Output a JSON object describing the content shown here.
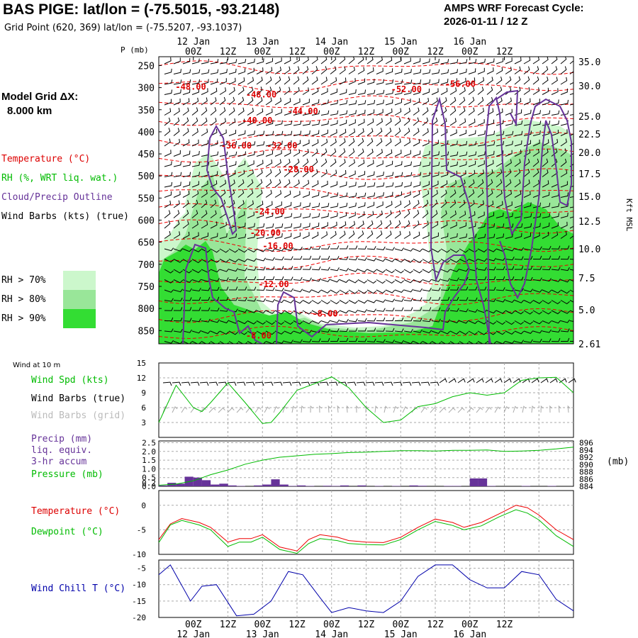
{
  "header": {
    "title": "BAS PIGE:  lat/lon = (-75.5015, -93.2148)",
    "subtitle": "Grid Point (620, 369) lat/lon = (-75.5207, -93.1037)",
    "cycle_label": "AMPS WRF Forecast Cycle:",
    "cycle_value": "2026-01-11 / 12  Z",
    "grid_label": "Model Grid ΔX:",
    "grid_value": "8.000 km"
  },
  "legend_top": {
    "temperature": "Temperature (°C)",
    "rh": "RH (%, WRT liq. wat.)",
    "cloud": "Cloud/Precip Outline",
    "wind": "Wind Barbs (kts) (true)",
    "rh_levels": [
      {
        "label": "RH > 70%",
        "color": "#ccf7cc"
      },
      {
        "label": "RH > 80%",
        "color": "#99e699"
      },
      {
        "label": "RH > 90%",
        "color": "#33dd33"
      }
    ]
  },
  "legend_wind": {
    "note": "Wind at 10 m",
    "speed": "Wind Spd (kts)",
    "barbs_true": "Wind Barbs (true)",
    "barbs_grid": "Wind Barbs (grid)"
  },
  "legend_precip": {
    "l1": "Precip (mm)",
    "l2": "liq. equiv.",
    "l3": "3-hr accum",
    "l4": "Pressure (mb)",
    "unit": "(mb)"
  },
  "legend_temp": {
    "temperature": "Temperature (°C)",
    "dewpoint": "Dewpoint (°C)"
  },
  "legend_chill": {
    "label": "Wind Chill T (°C)"
  },
  "colors": {
    "temperature": "#ee0000",
    "dewpoint": "#00bb00",
    "cloud": "#663399",
    "precip": "#663399",
    "pressure": "#00bb00",
    "windspeed": "#00bb00",
    "windchill": "#0000aa",
    "grid_barbs": "#aaaaaa"
  },
  "chart_data": [
    {
      "id": "cross_section",
      "type": "heatmap",
      "ylabel": "P (mb)",
      "ylabel_right": "Kft MSL",
      "pressure_ticks": [
        "250",
        "300",
        "350",
        "400",
        "450",
        "500",
        "550",
        "600",
        "650",
        "700",
        "750",
        "800",
        "850"
      ],
      "height_ticks": [
        "35.0",
        "30.0",
        "25.0",
        "22.5",
        "20.0",
        "17.5",
        "15.0",
        "12.5",
        "10.0",
        "7.5",
        "5.0",
        "2.61"
      ],
      "top_time_labels": [
        "00Z",
        "12Z",
        "00Z",
        "12Z",
        "00Z",
        "12Z",
        "00Z",
        "12Z",
        "00Z",
        "12Z"
      ],
      "top_date_labels": [
        "12 Jan",
        "13 Jan",
        "14 Jan",
        "15 Jan",
        "16 Jan"
      ],
      "temperature_labels": [
        {
          "text": "-48.00",
          "x": 4,
          "p": 305
        },
        {
          "text": "-48.00",
          "x": 21,
          "p": 322
        },
        {
          "text": "-52.00",
          "x": 56,
          "p": 310
        },
        {
          "text": "-56.00",
          "x": 69,
          "p": 298
        },
        {
          "text": "-44.00",
          "x": 31,
          "p": 360
        },
        {
          "text": "-40.00",
          "x": 20,
          "p": 381
        },
        {
          "text": "-36.00",
          "x": 15,
          "p": 438
        },
        {
          "text": "-32.00",
          "x": 26,
          "p": 438
        },
        {
          "text": "-28.00",
          "x": 30,
          "p": 492
        },
        {
          "text": "-24.00",
          "x": 23,
          "p": 587
        },
        {
          "text": "-20.00",
          "x": 22,
          "p": 635
        },
        {
          "text": "-16.00",
          "x": 25,
          "p": 665
        },
        {
          "text": "-12.00",
          "x": 24,
          "p": 752
        },
        {
          "text": "-8.00",
          "x": 37,
          "p": 818
        },
        {
          "text": "-8.00",
          "x": 21,
          "p": 868
        }
      ]
    },
    {
      "id": "wind_speed",
      "type": "line",
      "title": "Wind Spd (kts)",
      "yticks": [
        "15",
        "12",
        "9",
        "6",
        "3"
      ],
      "ylim": [
        0,
        15
      ],
      "x_hours": [
        0,
        6,
        12,
        15,
        18,
        24,
        30,
        36,
        39,
        42,
        48,
        54,
        60,
        66,
        72,
        78,
        84,
        90,
        96,
        102,
        108,
        114,
        120,
        126,
        132,
        138,
        144
      ],
      "values": [
        3.0,
        10.5,
        6.0,
        5.2,
        7.0,
        11.0,
        7.0,
        2.8,
        3.0,
        5.0,
        9.5,
        10.8,
        12.2,
        10.0,
        6.0,
        3.0,
        3.5,
        6.2,
        6.8,
        8.2,
        9.0,
        8.5,
        9.0,
        11.5,
        12.0,
        12.1,
        9.0
      ]
    },
    {
      "id": "precip_pressure",
      "type": "bar",
      "yticks_left": [
        "2.5",
        "2.0",
        "1.5",
        "1.0",
        "0.5",
        "0.2",
        "0.0"
      ],
      "yticks_right": [
        "896",
        "894",
        "892",
        "890",
        "888",
        "886",
        "884"
      ],
      "precip_hours": [
        0,
        3,
        6,
        9,
        12,
        15,
        18,
        21,
        24,
        27,
        30,
        33,
        36,
        39,
        42,
        45,
        48,
        51,
        54,
        57,
        60,
        63,
        66,
        69,
        72,
        75,
        78,
        81,
        84,
        87,
        90,
        93,
        96,
        99,
        102,
        105,
        108,
        111,
        114,
        117,
        120,
        123,
        126,
        129,
        132,
        135,
        138,
        141
      ],
      "precip_values": [
        0.05,
        0.2,
        0.15,
        0.55,
        0.5,
        0.35,
        0.1,
        0.15,
        0.05,
        0.02,
        0.0,
        0.05,
        0.1,
        0.4,
        0.1,
        0.02,
        0.05,
        0.02,
        0.0,
        0.03,
        0.02,
        0.05,
        0.0,
        0.05,
        0.0,
        0.02,
        0.0,
        0.02,
        0.0,
        0.05,
        0.03,
        0.0,
        0.0,
        0.02,
        0.02,
        0.0,
        0.45,
        0.45,
        0.02,
        0.0,
        0.0,
        0.0,
        0.02,
        0.0,
        0.0,
        0.02,
        0.0,
        0.0
      ],
      "pressure_hours": [
        0,
        6,
        12,
        18,
        24,
        30,
        36,
        42,
        48,
        54,
        60,
        66,
        72,
        78,
        84,
        90,
        96,
        102,
        108,
        114,
        120,
        126,
        132,
        138,
        144
      ],
      "pressure_values": [
        884.3,
        884.6,
        885.5,
        887.2,
        888.5,
        890.1,
        891.2,
        892.0,
        892.4,
        892.8,
        893.0,
        893.3,
        893.4,
        893.6,
        893.8,
        893.8,
        893.7,
        893.9,
        893.9,
        894.0,
        893.6,
        893.7,
        893.9,
        894.3,
        894.8
      ]
    },
    {
      "id": "temp_dewpoint",
      "type": "line",
      "yticks": [
        "0",
        "-5",
        "-10"
      ],
      "ylim": [
        -10,
        3
      ],
      "series": [
        {
          "name": "Temperature",
          "x": [
            0,
            4,
            8,
            14,
            18,
            24,
            28,
            32,
            36,
            42,
            48,
            52,
            56,
            62,
            66,
            72,
            78,
            84,
            90,
            96,
            102,
            106,
            112,
            118,
            124,
            128,
            132,
            138,
            144
          ],
          "values": [
            -7,
            -3.8,
            -2.7,
            -3.5,
            -4.5,
            -7.5,
            -6.8,
            -6.8,
            -6.0,
            -8.5,
            -9.3,
            -7.0,
            -6.0,
            -6.5,
            -7.2,
            -7.5,
            -7.6,
            -6.5,
            -4.5,
            -2.8,
            -3.5,
            -4.5,
            -3.5,
            -1.8,
            0.0,
            -0.5,
            -2.0,
            -5.0,
            -7.0
          ]
        },
        {
          "name": "Dewpoint",
          "x": [
            0,
            4,
            8,
            14,
            18,
            24,
            28,
            32,
            36,
            42,
            48,
            52,
            56,
            62,
            66,
            72,
            78,
            84,
            90,
            96,
            102,
            106,
            112,
            118,
            124,
            128,
            132,
            138,
            144
          ],
          "values": [
            -7.6,
            -4.0,
            -3.1,
            -4.0,
            -5.0,
            -8.4,
            -7.5,
            -7.5,
            -6.5,
            -9.0,
            -9.8,
            -7.8,
            -6.8,
            -7.2,
            -7.8,
            -8.0,
            -8.1,
            -7.0,
            -5.0,
            -3.3,
            -4.1,
            -5.0,
            -4.2,
            -2.4,
            -0.9,
            -1.6,
            -3.0,
            -6.2,
            -8.4
          ]
        }
      ]
    },
    {
      "id": "wind_chill",
      "type": "line",
      "yticks": [
        "-5",
        "-10",
        "-15",
        "-20"
      ],
      "ylim": [
        -20,
        -2.5
      ],
      "x_hours": [
        0,
        4,
        11,
        15,
        20,
        27,
        33,
        39,
        45,
        50,
        56,
        60,
        66,
        72,
        78,
        84,
        90,
        96,
        102,
        108,
        114,
        120,
        126,
        132,
        138,
        144
      ],
      "values": [
        -7,
        -4,
        -15,
        -10.5,
        -10,
        -19.5,
        -19,
        -15,
        -6,
        -7,
        -14,
        -18.5,
        -17,
        -18,
        -18.5,
        -15,
        -7.5,
        -4,
        -4,
        -8.5,
        -11,
        -11,
        -6,
        -7,
        -14.5,
        -18
      ]
    }
  ],
  "bottom_axis": {
    "time_labels": [
      "00Z",
      "12Z",
      "00Z",
      "12Z",
      "00Z",
      "12Z",
      "00Z",
      "12Z",
      "00Z",
      "12Z"
    ],
    "date_labels": [
      "12 Jan",
      "13 Jan",
      "14 Jan",
      "15 Jan",
      "16 Jan"
    ]
  }
}
